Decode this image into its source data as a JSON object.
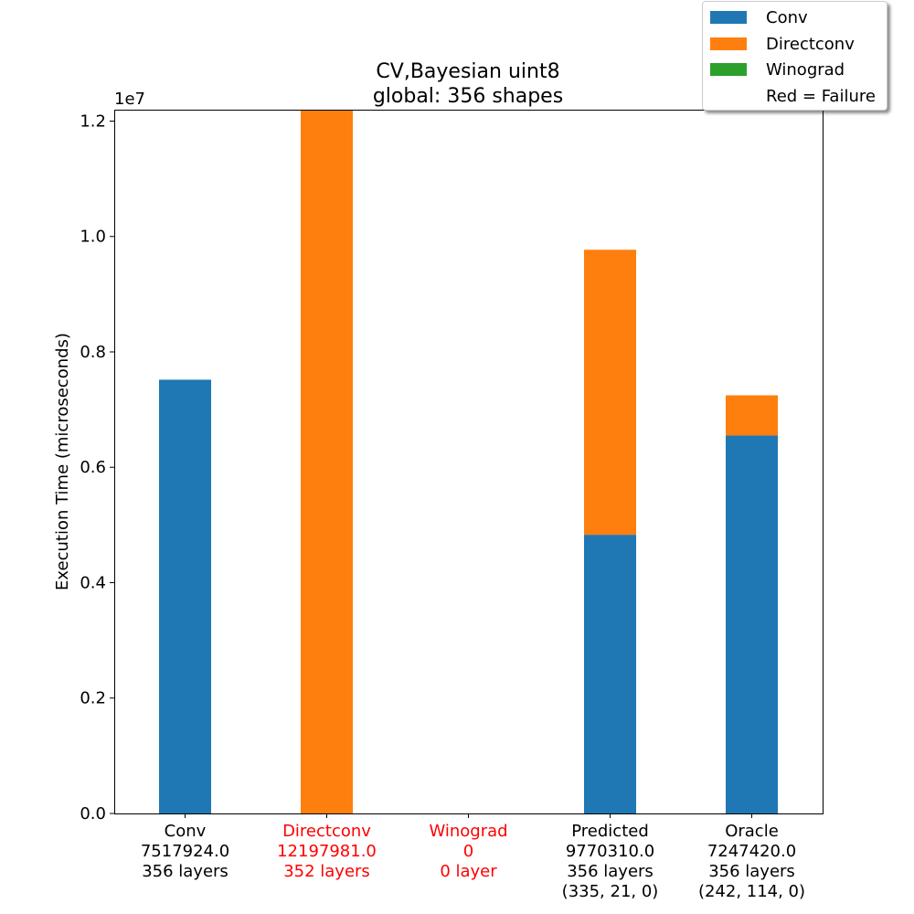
{
  "chart_data": {
    "type": "bar",
    "stacked": true,
    "title": "CV,Bayesian uint8",
    "subtitle": "global: 356 shapes",
    "ylabel": "Execution Time (microseconds)",
    "y_offset_label": "1e7",
    "ylim": [
      0,
      12197981
    ],
    "yticks": [
      0.0,
      0.2,
      0.4,
      0.6,
      0.8,
      1.0,
      1.2
    ],
    "legend_placement": "top-right",
    "legend": [
      "Conv",
      "Directconv",
      "Winograd",
      "Red = Failure"
    ],
    "colors": {
      "Conv": "#1f77b4",
      "Directconv": "#ff7f0e",
      "Winograd": "#2ca02c",
      "failure": "#ff0000",
      "normal": "#000000"
    },
    "categories": [
      {
        "lines": [
          "Conv",
          "7517924.0",
          "356 layers"
        ],
        "failure": false
      },
      {
        "lines": [
          "Directconv",
          "12197981.0",
          "352 layers"
        ],
        "failure": true
      },
      {
        "lines": [
          "Winograd",
          "0",
          "0 layer"
        ],
        "failure": true
      },
      {
        "lines": [
          "Predicted",
          "9770310.0",
          "356 layers",
          "(335, 21, 0)"
        ],
        "failure": false
      },
      {
        "lines": [
          "Oracle",
          "7247420.0",
          "356 layers",
          "(242, 114, 0)"
        ],
        "failure": false
      }
    ],
    "series": [
      {
        "name": "Conv",
        "values": [
          7517924,
          0,
          0,
          4830000,
          6550000
        ]
      },
      {
        "name": "Directconv",
        "values": [
          0,
          12197981,
          0,
          4940310,
          697420
        ]
      },
      {
        "name": "Winograd",
        "values": [
          0,
          0,
          0,
          0,
          0
        ]
      }
    ]
  }
}
